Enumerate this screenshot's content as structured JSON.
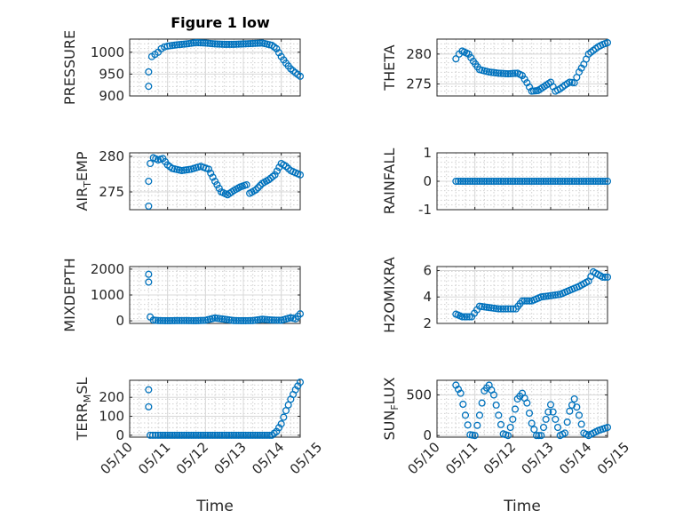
{
  "figure": {
    "title": "Figure 1 low",
    "marker_color": "#0072bd"
  },
  "chart_data": [
    {
      "type": "scatter",
      "key": "pressure",
      "ylabel": "PRESSURE",
      "ylabel_sub": "",
      "xlim": [
        "05/10",
        "05/14 12:00"
      ],
      "ylim": [
        900,
        1030
      ],
      "yticks": [
        900,
        950,
        1000
      ],
      "xticks": [
        "05/10",
        "05/11",
        "05/12",
        "05/13",
        "05/14",
        "05/15"
      ],
      "show_xtick_labels": false,
      "xlabel": "",
      "points": [
        [
          "05/10 12:00",
          922
        ],
        [
          "05/10 12:00",
          955
        ],
        [
          "05/10 14:00",
          990
        ],
        [
          "05/10 16:00",
          995
        ],
        [
          "05/10 18:00",
          1000
        ],
        [
          "05/10 20:00",
          1008
        ],
        [
          "05/10 22:00",
          1012
        ],
        [
          "05/11 00:00",
          1014
        ],
        [
          "05/11 06:00",
          1017
        ],
        [
          "05/11 12:00",
          1019
        ],
        [
          "05/11 18:00",
          1022
        ],
        [
          "05/12 00:00",
          1021
        ],
        [
          "05/12 06:00",
          1019
        ],
        [
          "05/12 12:00",
          1018
        ],
        [
          "05/12 18:00",
          1018
        ],
        [
          "05/13 00:00",
          1019
        ],
        [
          "05/13 06:00",
          1020
        ],
        [
          "05/13 12:00",
          1021
        ],
        [
          "05/13 18:00",
          1016
        ],
        [
          "05/13 21:00",
          1008
        ],
        [
          "05/14 00:00",
          990
        ],
        [
          "05/14 03:00",
          975
        ],
        [
          "05/14 06:00",
          962
        ],
        [
          "05/14 09:00",
          953
        ],
        [
          "05/14 12:00",
          945
        ]
      ]
    },
    {
      "type": "scatter",
      "key": "theta",
      "ylabel": "THETA",
      "ylabel_sub": "",
      "xlim": [
        "05/10",
        "05/14 12:00"
      ],
      "ylim": [
        273,
        282.5
      ],
      "yticks": [
        275,
        280
      ],
      "xticks": [
        "05/10",
        "05/11",
        "05/12",
        "05/13",
        "05/14",
        "05/15"
      ],
      "show_xtick_labels": false,
      "xlabel": "",
      "points": [
        [
          "05/10 12:00",
          279.2
        ],
        [
          "05/10 14:00",
          280
        ],
        [
          "05/10 16:00",
          280.5
        ],
        [
          "05/10 20:00",
          280
        ],
        [
          "05/10 23:00",
          278.8
        ],
        [
          "05/11 03:00",
          277.4
        ],
        [
          "05/11 09:00",
          277
        ],
        [
          "05/11 15:00",
          276.8
        ],
        [
          "05/11 21:00",
          276.7
        ],
        [
          "05/12 03:00",
          276.8
        ],
        [
          "05/12 06:00",
          276.4
        ],
        [
          "05/12 09:00",
          275.2
        ],
        [
          "05/12 12:00",
          273.8
        ],
        [
          "05/12 16:00",
          273.9
        ],
        [
          "05/12 20:00",
          274.6
        ],
        [
          "05/13 00:00",
          275.3
        ],
        [
          "05/13 03:00",
          273.8
        ],
        [
          "05/13 06:00",
          274.2
        ],
        [
          "05/13 09:00",
          274.8
        ],
        [
          "05/13 12:00",
          275.3
        ],
        [
          "05/13 15:00",
          275.2
        ],
        [
          "05/13 18:00",
          277
        ],
        [
          "05/13 21:00",
          278.3
        ],
        [
          "05/14 00:00",
          280
        ],
        [
          "05/14 03:00",
          280.6
        ],
        [
          "05/14 06:00",
          281.2
        ],
        [
          "05/14 09:00",
          281.6
        ],
        [
          "05/14 12:00",
          281.9
        ]
      ]
    },
    {
      "type": "scatter",
      "key": "air_temp",
      "ylabel": "AIR",
      "ylabel_sub": "T",
      "ylabel_suffix": "EMP",
      "xlim": [
        "05/10",
        "05/14 12:00"
      ],
      "ylim": [
        272.5,
        280.5
      ],
      "yticks": [
        275,
        280
      ],
      "xticks": [
        "05/10",
        "05/11",
        "05/12",
        "05/13",
        "05/14",
        "05/15"
      ],
      "show_xtick_labels": false,
      "xlabel": "",
      "points": [
        [
          "05/10 12:00",
          273
        ],
        [
          "05/10 12:00",
          276.5
        ],
        [
          "05/10 13:00",
          279
        ],
        [
          "05/10 15:00",
          279.8
        ],
        [
          "05/10 18:00",
          279.5
        ],
        [
          "05/10 21:00",
          279.7
        ],
        [
          "05/11 00:00",
          278.8
        ],
        [
          "05/11 03:00",
          278.3
        ],
        [
          "05/11 09:00",
          278
        ],
        [
          "05/11 15:00",
          278.2
        ],
        [
          "05/11 21:00",
          278.6
        ],
        [
          "05/12 02:00",
          278.2
        ],
        [
          "05/12 06:00",
          276.5
        ],
        [
          "05/12 10:00",
          275
        ],
        [
          "05/12 14:00",
          274.6
        ],
        [
          "05/12 18:00",
          275.2
        ],
        [
          "05/12 22:00",
          275.7
        ],
        [
          "05/13 02:00",
          276
        ],
        [
          "05/13 04:00",
          274.8
        ],
        [
          "05/13 08:00",
          275.3
        ],
        [
          "05/13 12:00",
          276.2
        ],
        [
          "05/13 16:00",
          276.7
        ],
        [
          "05/13 20:00",
          277.4
        ],
        [
          "05/14 00:00",
          279
        ],
        [
          "05/14 03:00",
          278.6
        ],
        [
          "05/14 06:00",
          278
        ],
        [
          "05/14 09:00",
          277.7
        ],
        [
          "05/14 12:00",
          277.4
        ]
      ]
    },
    {
      "type": "scatter",
      "key": "rainfall",
      "ylabel": "RAINFALL",
      "ylabel_sub": "",
      "xlim": [
        "05/10",
        "05/14 12:00"
      ],
      "ylim": [
        -1,
        1
      ],
      "yticks": [
        -1,
        0,
        1
      ],
      "xticks": [
        "05/10",
        "05/11",
        "05/12",
        "05/13",
        "05/14",
        "05/15"
      ],
      "show_xtick_labels": false,
      "xlabel": "",
      "points": [
        [
          "05/10 12:00",
          0
        ],
        [
          "05/10 18:00",
          0
        ],
        [
          "05/11 00:00",
          0
        ],
        [
          "05/11 06:00",
          0
        ],
        [
          "05/11 12:00",
          0
        ],
        [
          "05/11 18:00",
          0
        ],
        [
          "05/12 00:00",
          0
        ],
        [
          "05/12 06:00",
          0
        ],
        [
          "05/12 12:00",
          0
        ],
        [
          "05/12 18:00",
          0
        ],
        [
          "05/13 00:00",
          0
        ],
        [
          "05/13 06:00",
          0
        ],
        [
          "05/13 12:00",
          0
        ],
        [
          "05/13 18:00",
          0
        ],
        [
          "05/14 00:00",
          0
        ],
        [
          "05/14 06:00",
          0
        ],
        [
          "05/14 12:00",
          0
        ]
      ]
    },
    {
      "type": "scatter",
      "key": "mixdepth",
      "ylabel": "MIXDEPTH",
      "ylabel_sub": "",
      "xlim": [
        "05/10",
        "05/14 12:00"
      ],
      "ylim": [
        -100,
        2100
      ],
      "yticks": [
        0,
        1000,
        2000
      ],
      "xticks": [
        "05/10",
        "05/11",
        "05/12",
        "05/13",
        "05/14",
        "05/15"
      ],
      "show_xtick_labels": false,
      "xlabel": "",
      "points": [
        [
          "05/10 12:00",
          1800
        ],
        [
          "05/10 12:00",
          1500
        ],
        [
          "05/10 13:00",
          150
        ],
        [
          "05/10 15:00",
          30
        ],
        [
          "05/10 18:00",
          10
        ],
        [
          "05/11 00:00",
          5
        ],
        [
          "05/11 06:00",
          10
        ],
        [
          "05/11 12:00",
          10
        ],
        [
          "05/11 18:00",
          5
        ],
        [
          "05/12 00:00",
          20
        ],
        [
          "05/12 06:00",
          110
        ],
        [
          "05/12 12:00",
          60
        ],
        [
          "05/12 18:00",
          10
        ],
        [
          "05/13 00:00",
          5
        ],
        [
          "05/13 06:00",
          10
        ],
        [
          "05/13 12:00",
          60
        ],
        [
          "05/13 18:00",
          30
        ],
        [
          "05/14 00:00",
          20
        ],
        [
          "05/14 06:00",
          120
        ],
        [
          "05/14 09:00",
          80
        ],
        [
          "05/14 12:00",
          270
        ]
      ]
    },
    {
      "type": "scatter",
      "key": "h2omixra",
      "ylabel": "H2OMIXRA",
      "ylabel_sub": "",
      "xlim": [
        "05/10",
        "05/14 12:00"
      ],
      "ylim": [
        2,
        6.3
      ],
      "yticks": [
        2,
        4,
        6
      ],
      "xticks": [
        "05/10",
        "05/11",
        "05/12",
        "05/13",
        "05/14",
        "05/15"
      ],
      "show_xtick_labels": false,
      "xlabel": "",
      "points": [
        [
          "05/10 12:00",
          2.7
        ],
        [
          "05/10 16:00",
          2.5
        ],
        [
          "05/10 22:00",
          2.5
        ],
        [
          "05/11 03:00",
          3.3
        ],
        [
          "05/11 09:00",
          3.2
        ],
        [
          "05/11 15:00",
          3.1
        ],
        [
          "05/11 21:00",
          3.1
        ],
        [
          "05/12 02:00",
          3.1
        ],
        [
          "05/12 06:00",
          3.7
        ],
        [
          "05/12 12:00",
          3.7
        ],
        [
          "05/12 18:00",
          4
        ],
        [
          "05/13 00:00",
          4.1
        ],
        [
          "05/13 06:00",
          4.2
        ],
        [
          "05/13 12:00",
          4.5
        ],
        [
          "05/13 18:00",
          4.8
        ],
        [
          "05/14 00:00",
          5.2
        ],
        [
          "05/14 03:00",
          5.9
        ],
        [
          "05/14 06:00",
          5.7
        ],
        [
          "05/14 09:00",
          5.5
        ],
        [
          "05/14 12:00",
          5.5
        ]
      ]
    },
    {
      "type": "scatter",
      "key": "terr_msl",
      "ylabel": "TERR",
      "ylabel_sub": "M",
      "ylabel_suffix": "SL",
      "xlim": [
        "05/10",
        "05/14 12:00"
      ],
      "ylim": [
        -10,
        290
      ],
      "yticks": [
        0,
        100,
        200
      ],
      "xticks": [
        "05/10",
        "05/11",
        "05/12",
        "05/13",
        "05/14",
        "05/15"
      ],
      "show_xtick_labels": true,
      "xlabel": "Time",
      "points": [
        [
          "05/10 12:00",
          240
        ],
        [
          "05/10 12:00",
          150
        ],
        [
          "05/10 13:00",
          0
        ],
        [
          "05/10 18:00",
          0
        ],
        [
          "05/11 00:00",
          0
        ],
        [
          "05/11 06:00",
          0
        ],
        [
          "05/11 12:00",
          0
        ],
        [
          "05/11 18:00",
          0
        ],
        [
          "05/12 00:00",
          0
        ],
        [
          "05/12 06:00",
          0
        ],
        [
          "05/12 12:00",
          0
        ],
        [
          "05/12 18:00",
          0
        ],
        [
          "05/13 00:00",
          0
        ],
        [
          "05/13 06:00",
          0
        ],
        [
          "05/13 12:00",
          0
        ],
        [
          "05/13 18:00",
          0
        ],
        [
          "05/13 21:00",
          20
        ],
        [
          "05/14 00:00",
          60
        ],
        [
          "05/14 03:00",
          130
        ],
        [
          "05/14 06:00",
          190
        ],
        [
          "05/14 09:00",
          240
        ],
        [
          "05/14 12:00",
          280
        ]
      ]
    },
    {
      "type": "scatter",
      "key": "sun_flux",
      "ylabel": "SUN",
      "ylabel_sub": "F",
      "ylabel_suffix": "LUX",
      "xlim": [
        "05/10",
        "05/14 12:00"
      ],
      "ylim": [
        -20,
        680
      ],
      "yticks": [
        0,
        500
      ],
      "xticks": [
        "05/10",
        "05/11",
        "05/12",
        "05/13",
        "05/14",
        "05/15"
      ],
      "show_xtick_labels": true,
      "xlabel": "Time",
      "points": [
        [
          "05/10 12:00",
          620
        ],
        [
          "05/10 15:00",
          520
        ],
        [
          "05/10 18:00",
          250
        ],
        [
          "05/10 21:00",
          10
        ],
        [
          "05/11 00:00",
          0
        ],
        [
          "05/11 03:00",
          250
        ],
        [
          "05/11 06:00",
          550
        ],
        [
          "05/11 09:00",
          620
        ],
        [
          "05/11 12:00",
          500
        ],
        [
          "05/11 15:00",
          250
        ],
        [
          "05/11 18:00",
          20
        ],
        [
          "05/11 21:00",
          0
        ],
        [
          "05/12 00:00",
          200
        ],
        [
          "05/12 03:00",
          450
        ],
        [
          "05/12 06:00",
          520
        ],
        [
          "05/12 09:00",
          400
        ],
        [
          "05/12 12:00",
          150
        ],
        [
          "05/12 15:00",
          0
        ],
        [
          "05/12 18:00",
          0
        ],
        [
          "05/12 21:00",
          200
        ],
        [
          "05/13 00:00",
          380
        ],
        [
          "05/13 03:00",
          200
        ],
        [
          "05/13 06:00",
          0
        ],
        [
          "05/13 09:00",
          30
        ],
        [
          "05/13 12:00",
          300
        ],
        [
          "05/13 15:00",
          450
        ],
        [
          "05/13 18:00",
          250
        ],
        [
          "05/13 21:00",
          30
        ],
        [
          "05/14 00:00",
          0
        ],
        [
          "05/14 06:00",
          60
        ],
        [
          "05/14 12:00",
          100
        ]
      ]
    }
  ]
}
